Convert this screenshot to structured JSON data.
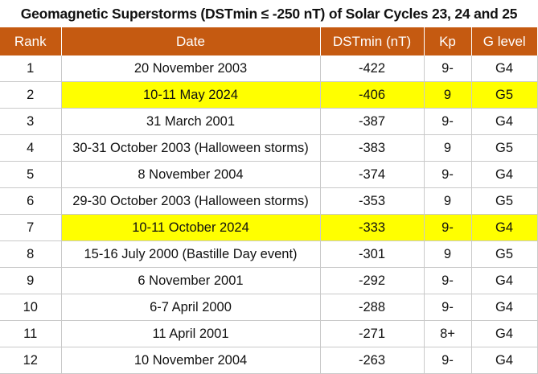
{
  "title": "Geomagnetic Superstorms (DSTmin ≤ -250 nT) of Solar Cycles 23, 24 and 25",
  "columns": [
    "Rank",
    "Date",
    "DSTmin (nT)",
    "Kp",
    "G level"
  ],
  "highlight_color": "#ffff00",
  "header_color": "#c55a11",
  "rows": [
    {
      "rank": "1",
      "date": "20 November 2003",
      "dst": "-422",
      "kp": "9-",
      "g": "G4",
      "highlight": false
    },
    {
      "rank": "2",
      "date": "10-11 May 2024",
      "dst": "-406",
      "kp": "9",
      "g": "G5",
      "highlight": true
    },
    {
      "rank": "3",
      "date": "31 March 2001",
      "dst": "-387",
      "kp": "9-",
      "g": "G4",
      "highlight": false
    },
    {
      "rank": "4",
      "date": "30-31 October 2003 (Halloween storms)",
      "dst": "-383",
      "kp": "9",
      "g": "G5",
      "highlight": false
    },
    {
      "rank": "5",
      "date": "8 November 2004",
      "dst": "-374",
      "kp": "9-",
      "g": "G4",
      "highlight": false
    },
    {
      "rank": "6",
      "date": "29-30 October 2003 (Halloween storms)",
      "dst": "-353",
      "kp": "9",
      "g": "G5",
      "highlight": false
    },
    {
      "rank": "7",
      "date": "10-11 October 2024",
      "dst": "-333",
      "kp": "9-",
      "g": "G4",
      "highlight": true
    },
    {
      "rank": "8",
      "date": "15-16 July 2000 (Bastille Day event)",
      "dst": "-301",
      "kp": "9",
      "g": "G5",
      "highlight": false
    },
    {
      "rank": "9",
      "date": "6 November 2001",
      "dst": "-292",
      "kp": "9-",
      "g": "G4",
      "highlight": false
    },
    {
      "rank": "10",
      "date": "6-7 April 2000",
      "dst": "-288",
      "kp": "9-",
      "g": "G4",
      "highlight": false
    },
    {
      "rank": "11",
      "date": "11 April 2001",
      "dst": "-271",
      "kp": "8+",
      "g": "G4",
      "highlight": false
    },
    {
      "rank": "12",
      "date": "10 November 2004",
      "dst": "-263",
      "kp": "9-",
      "g": "G4",
      "highlight": false
    }
  ]
}
